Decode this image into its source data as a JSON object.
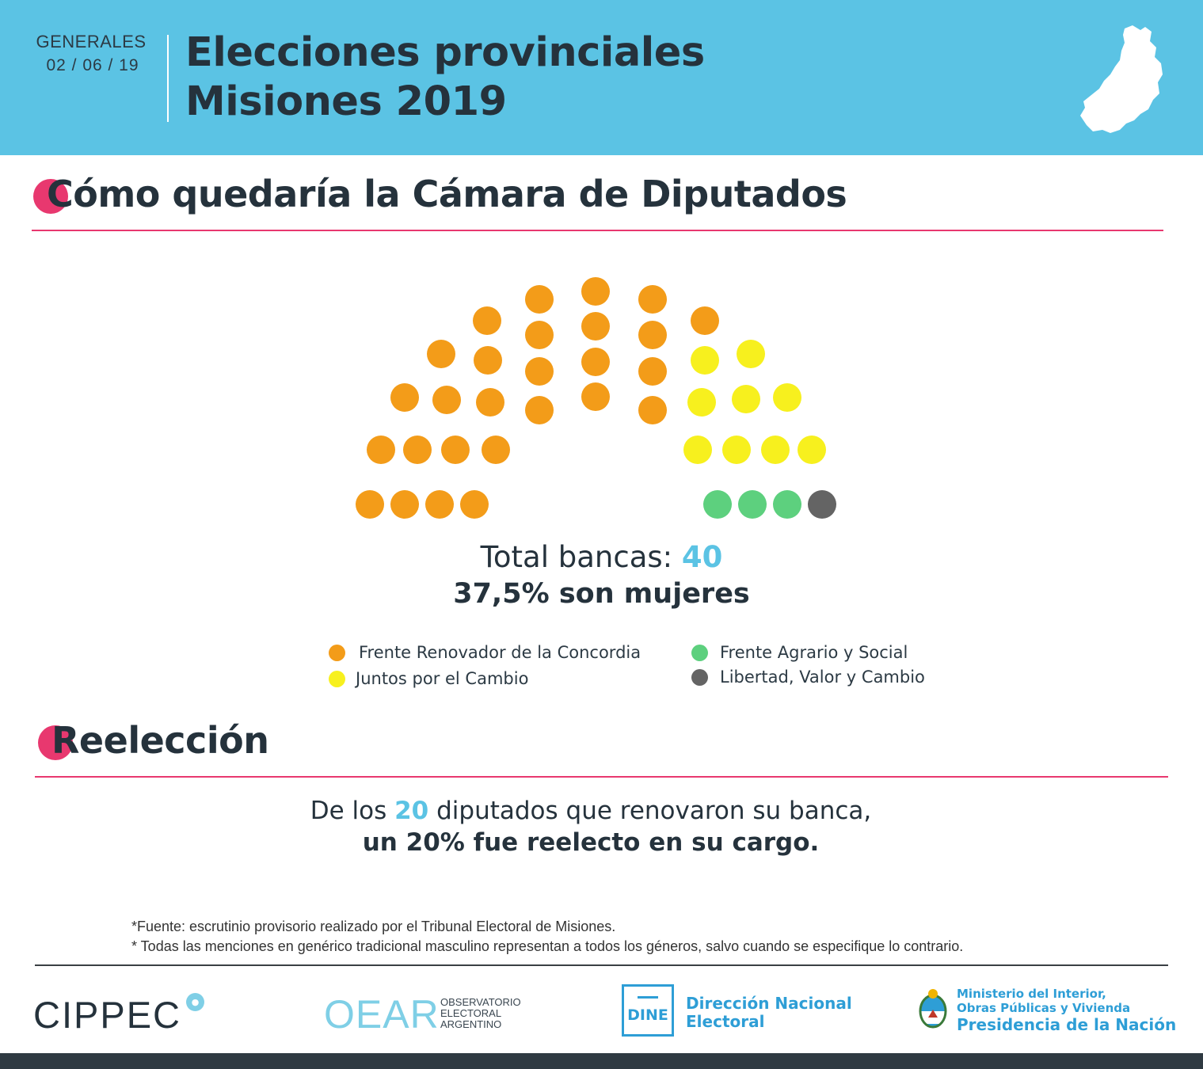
{
  "header": {
    "election_type": "GENERALES",
    "date": "02 / 06 / 19",
    "title_line1": "Elecciones provinciales",
    "title_line2": "Misiones 2019",
    "map_icon": "misiones-province-map-icon",
    "bg_color": "#5bc3e4"
  },
  "chamber": {
    "section_title": "Cómo quedaría la Cámara de Diputados",
    "total_label": "Total bancas:",
    "total_value": "40",
    "women_line": "37,5% son mujeres",
    "parties": [
      {
        "name": "Frente Renovador de la Concordia",
        "seats": 27,
        "color": "#f39c19"
      },
      {
        "name": "Juntos por el Cambio",
        "seats": 9,
        "color": "#f7f01e"
      },
      {
        "name": "Frente Agrario y Social",
        "seats": 3,
        "color": "#5dd07e"
      },
      {
        "name": "Libertad, Valor y Cambio",
        "seats": 1,
        "color": "#646464"
      }
    ]
  },
  "reelection": {
    "section_title": "Reelección",
    "line1_before": "De los",
    "line1_number": "20",
    "line1_after": "diputados que renovaron su banca,",
    "line2": "un 20% fue reelecto en su cargo."
  },
  "notes": {
    "source": "*Fuente: escrutinio provisorio realizado por el Tribunal Electoral de Misiones.",
    "gender": "* Todas las menciones en genérico tradicional masculino representan a todos los géneros, salvo cuando se especifique lo contrario."
  },
  "logos": {
    "cippec": "CIPPEC",
    "oear": "OEAR",
    "oear_sub": [
      "OBSERVATORIO",
      "ELECTORAL",
      "ARGENTINO"
    ],
    "dine_abbr": "DINE",
    "dine_name": [
      "Dirección Nacional",
      "Electoral"
    ],
    "ministry": [
      "Ministerio del Interior,",
      "Obras Públicas y Vivienda",
      "Presidencia de la Nación"
    ]
  },
  "colors": {
    "accent_pink": "#e8386f",
    "accent_blue": "#5bc3e4",
    "text_dark": "#25323c"
  }
}
